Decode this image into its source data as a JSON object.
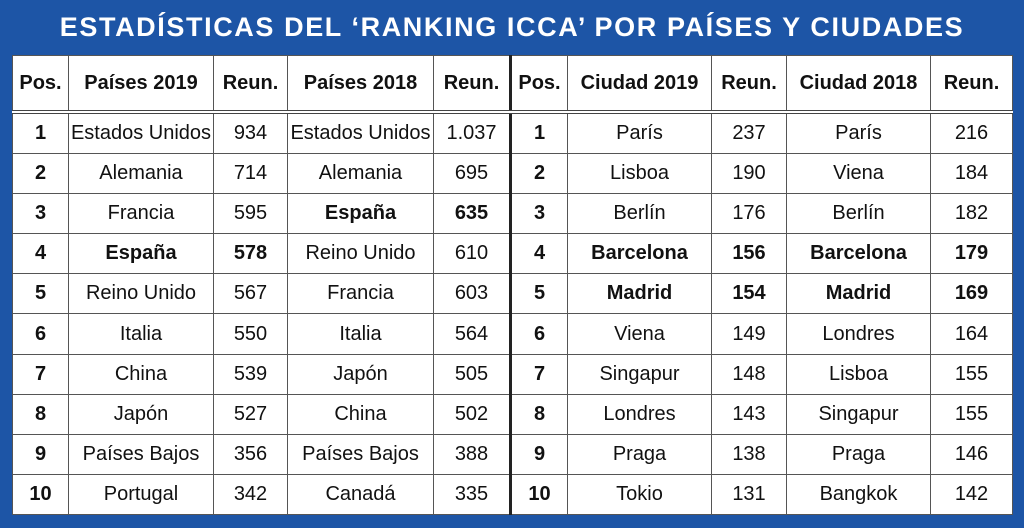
{
  "title": "ESTADÍSTICAS DEL ‘RANKING ICCA’ POR PAÍSES Y CIUDADES",
  "table": {
    "headers": [
      "Pos.",
      "Países 2019",
      "Reun.",
      "Países 2018",
      "Reun.",
      "Pos.",
      "Ciudad 2019",
      "Reun.",
      "Ciudad 2018",
      "Reun."
    ],
    "rows": [
      [
        1,
        "Estados Unidos",
        934,
        "Estados Unidos",
        "1.037",
        1,
        "París",
        237,
        "París",
        216
      ],
      [
        2,
        "Alemania",
        714,
        "Alemania",
        695,
        2,
        "Lisboa",
        190,
        "Viena",
        184
      ],
      [
        3,
        "Francia",
        595,
        "España",
        635,
        3,
        "Berlín",
        176,
        "Berlín",
        182
      ],
      [
        4,
        "España",
        578,
        "Reino Unido",
        610,
        4,
        "Barcelona",
        156,
        "Barcelona",
        179
      ],
      [
        5,
        "Reino Unido",
        567,
        "Francia",
        603,
        5,
        "Madrid",
        154,
        "Madrid",
        169
      ],
      [
        6,
        "Italia",
        550,
        "Italia",
        564,
        6,
        "Viena",
        149,
        "Londres",
        164
      ],
      [
        7,
        "China",
        539,
        "Japón",
        505,
        7,
        "Singapur",
        148,
        "Lisboa",
        155
      ],
      [
        8,
        "Japón",
        527,
        "China",
        502,
        8,
        "Londres",
        143,
        "Singapur",
        155
      ],
      [
        9,
        "Países Bajos",
        356,
        "Países Bajos",
        388,
        9,
        "Praga",
        138,
        "Praga",
        146
      ],
      [
        10,
        "Portugal",
        342,
        "Canadá",
        335,
        10,
        "Tokio",
        131,
        "Bangkok",
        142
      ]
    ]
  }
}
